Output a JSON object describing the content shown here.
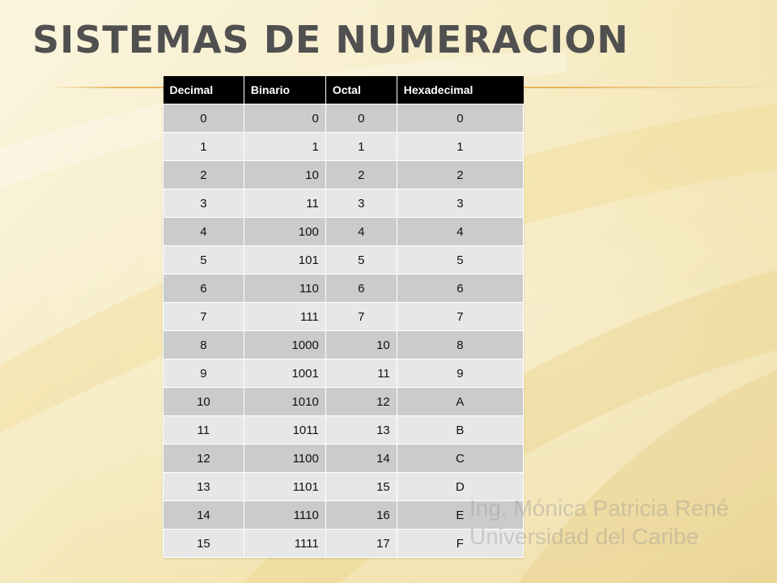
{
  "slide": {
    "title": "Sistemas de Numeracion"
  },
  "table": {
    "headers": [
      "Decimal",
      "Binario",
      "Octal",
      "Hexadecimal"
    ],
    "rows": [
      [
        "0",
        "0",
        "0",
        "0"
      ],
      [
        "1",
        "1",
        "1",
        "1"
      ],
      [
        "2",
        "10",
        "2",
        "2"
      ],
      [
        "3",
        "11",
        "3",
        "3"
      ],
      [
        "4",
        "100",
        "4",
        "4"
      ],
      [
        "5",
        "101",
        "5",
        "5"
      ],
      [
        "6",
        "110",
        "6",
        "6"
      ],
      [
        "7",
        "111",
        "7",
        "7"
      ],
      [
        "8",
        "1000",
        "10",
        "8"
      ],
      [
        "9",
        "1001",
        "11",
        "9"
      ],
      [
        "10",
        "1010",
        "12",
        "A"
      ],
      [
        "11",
        "1011",
        "13",
        "B"
      ],
      [
        "12",
        "1100",
        "14",
        "C"
      ],
      [
        "13",
        "1101",
        "15",
        "D"
      ],
      [
        "14",
        "1110",
        "16",
        "E"
      ],
      [
        "15",
        "1111",
        "17",
        "F"
      ]
    ]
  },
  "watermark": {
    "line1": "Ing. Mónica Patricia René",
    "line2": "Universidad del Caribe"
  },
  "colors": {
    "background": "#f7eecb",
    "accent_rule": "#e8b45a",
    "header_bg": "#000000",
    "row_dark": "#cbcbcb",
    "row_light": "#e7e7e7",
    "title": "#505050"
  }
}
